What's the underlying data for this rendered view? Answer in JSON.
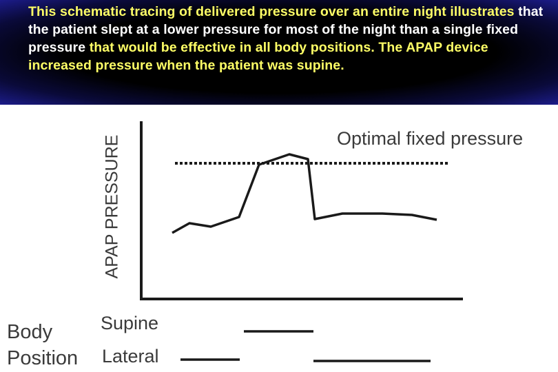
{
  "caption": {
    "segments": [
      {
        "text": "This schematic tracing of delivered pressure over an entire night ",
        "color": "#ffff66"
      },
      {
        "text": "illustrates ",
        "color": "#ffff66"
      },
      {
        "text": "that the patient slept at a lower pressure for most of the night than a single fixed pressure ",
        "color": "#ffffff"
      },
      {
        "text": "that would be effective in all body positions. The APAP device increased pressure when the patient was supine.",
        "color": "#ffff66"
      }
    ]
  },
  "diagram": {
    "y_axis_label": "APAP PRESSURE",
    "fixed_pressure_label": "Optimal fixed pressure",
    "body_position_label_line1": "Body",
    "body_position_label_line2": "Position",
    "supine_label": "Supine",
    "lateral_label": "Lateral"
  },
  "colors": {
    "header_bg": "#000000",
    "caption_yellow": "#ffff66",
    "caption_white": "#ffffff",
    "diagram_ink": "#1a1a1a"
  }
}
